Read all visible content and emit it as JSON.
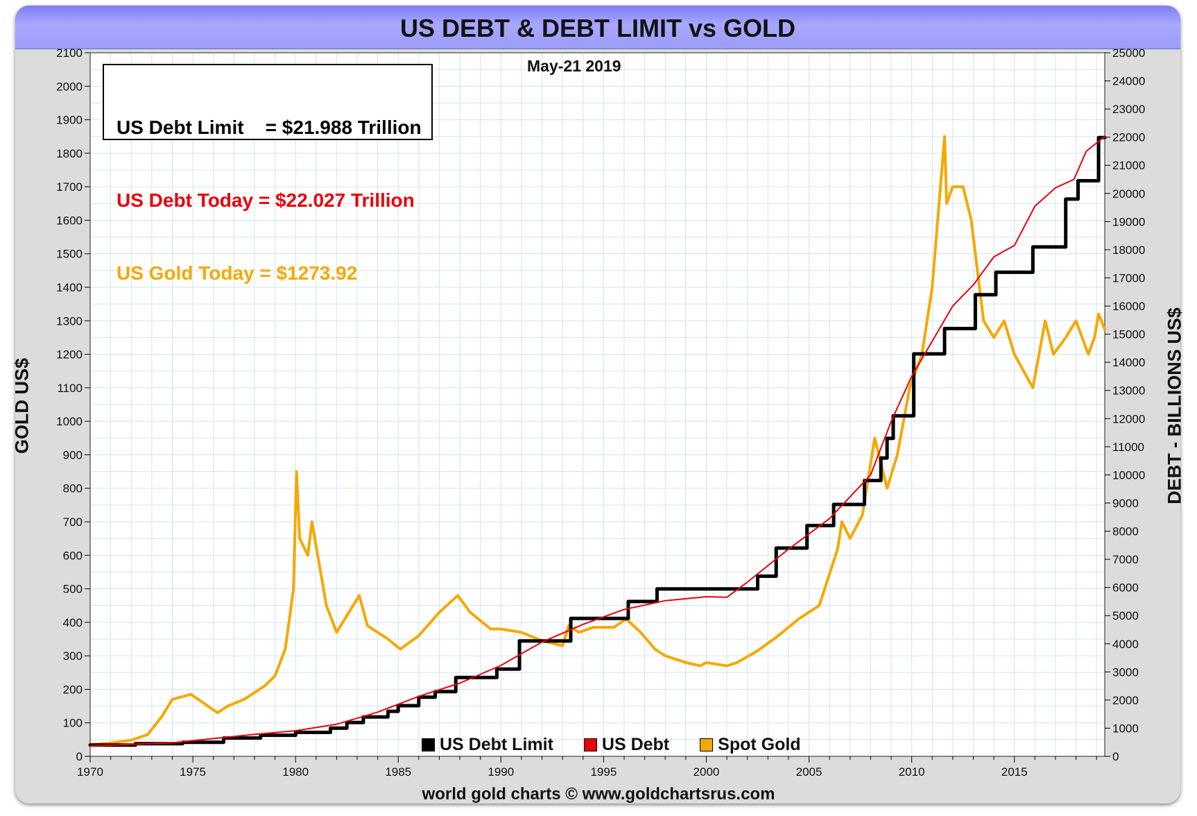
{
  "title": "US DEBT & DEBT LIMIT vs GOLD",
  "info_box": {
    "limit_line": "US Debt Limit    = $21.988 Trillion",
    "debt_line": "US Debt Today = $22.027 Trillion",
    "gold_line": "US Gold Today = $1273.92"
  },
  "date_label": "May-21  2019",
  "credit": "world gold charts © www.goldchartsrus.com",
  "colors": {
    "debt_limit": "#000000",
    "us_debt": "#e8000b",
    "spot_gold": "#f5a800",
    "title_bar": "#a3a3ff",
    "grid": "#d3e3f1"
  },
  "chart_data": {
    "type": "line",
    "title": "US DEBT & DEBT LIMIT vs GOLD",
    "xlabel": "",
    "ylabel_left": "GOLD US$",
    "ylabel_right": "DEBT - BILLIONS US$",
    "xlim": [
      1970,
      2019.4
    ],
    "ylim_left": [
      0,
      2100
    ],
    "ylim_right": [
      0,
      25000
    ],
    "x_ticks": [
      1970,
      1975,
      1980,
      1985,
      1990,
      1995,
      2000,
      2005,
      2010,
      2015
    ],
    "y_ticks_left": [
      0,
      100,
      200,
      300,
      400,
      500,
      600,
      700,
      800,
      900,
      1000,
      1100,
      1200,
      1300,
      1400,
      1500,
      1600,
      1700,
      1800,
      1900,
      2000,
      2100
    ],
    "y_ticks_right": [
      0,
      1000,
      2000,
      3000,
      4000,
      5000,
      6000,
      7000,
      8000,
      9000,
      10000,
      11000,
      12000,
      13000,
      14000,
      15000,
      16000,
      17000,
      18000,
      19000,
      20000,
      21000,
      22000,
      23000,
      24000,
      25000
    ],
    "grid": true,
    "legend_position": "bottom-center",
    "series": [
      {
        "name": "US Debt Limit",
        "axis": "right",
        "color": "#000000",
        "shape": "step",
        "x": [
          1970,
          1972.2,
          1974.5,
          1976.5,
          1978.3,
          1980,
          1981.7,
          1982.5,
          1983.3,
          1984.5,
          1985,
          1986,
          1986.8,
          1987.8,
          1989.8,
          1990.9,
          1993.4,
          1996.2,
          1997.6,
          2002.5,
          2003.4,
          2004.9,
          2006.2,
          2007.7,
          2008.5,
          2008.8,
          2009.1,
          2010.1,
          2011.6,
          2013.1,
          2014.1,
          2015.9,
          2017.5,
          2018.1,
          2019.1,
          2019.4
        ],
        "y": [
          400,
          450,
          500,
          650,
          750,
          850,
          1000,
          1200,
          1400,
          1600,
          1800,
          2100,
          2300,
          2800,
          3100,
          4100,
          4900,
          5500,
          5950,
          6400,
          7400,
          8200,
          8950,
          9800,
          10600,
          11300,
          12100,
          14300,
          15200,
          16400,
          17200,
          18100,
          19800,
          20450,
          21988,
          21988
        ]
      },
      {
        "name": "US Debt",
        "axis": "right",
        "color": "#e8000b",
        "shape": "line",
        "x": [
          1970,
          1972,
          1974,
          1976,
          1978,
          1980,
          1982,
          1984,
          1986,
          1988,
          1990,
          1992,
          1994,
          1996,
          1998,
          2000,
          2001,
          2002,
          2004,
          2006,
          2008,
          2009,
          2010,
          2011,
          2012,
          2013,
          2014,
          2015,
          2016,
          2017,
          2017.9,
          2018.5,
          2019.4
        ],
        "y": [
          370,
          430,
          480,
          630,
          780,
          910,
          1140,
          1570,
          2130,
          2600,
          3230,
          4060,
          4690,
          5220,
          5530,
          5670,
          5650,
          6190,
          7360,
          8450,
          10000,
          11900,
          13500,
          14750,
          16000,
          16750,
          17750,
          18150,
          19550,
          20200,
          20500,
          21500,
          22027
        ]
      },
      {
        "name": "Spot Gold",
        "axis": "left",
        "color": "#f5a800",
        "shape": "line",
        "x": [
          1970,
          1971,
          1972,
          1972.8,
          1973.5,
          1974,
          1974.9,
          1975.5,
          1976.2,
          1976.7,
          1977.5,
          1978.5,
          1979,
          1979.5,
          1979.9,
          1980.05,
          1980.2,
          1980.6,
          1980.8,
          1981.5,
          1982,
          1982.5,
          1983.1,
          1983.5,
          1984.5,
          1985.1,
          1986,
          1987,
          1987.9,
          1988.5,
          1989.5,
          1990,
          1991,
          1992,
          1993,
          1993.3,
          1993.8,
          1994.5,
          1995.5,
          1996.1,
          1996.8,
          1997.5,
          1998,
          1999,
          1999.7,
          2000,
          2001,
          2001.5,
          2002.5,
          2003.5,
          2004.5,
          2005.5,
          2006.4,
          2006.6,
          2007,
          2007.6,
          2008.2,
          2008.8,
          2009.3,
          2009.9,
          2010.5,
          2011,
          2011.6,
          2011.7,
          2012,
          2012.5,
          2012.9,
          2013.3,
          2013.5,
          2014,
          2014.5,
          2015,
          2015.9,
          2016.5,
          2016.9,
          2017.5,
          2018,
          2018.6,
          2018.9,
          2019.1,
          2019.4
        ],
        "y": [
          35,
          40,
          48,
          65,
          120,
          170,
          185,
          160,
          130,
          150,
          170,
          210,
          240,
          320,
          500,
          850,
          650,
          600,
          700,
          450,
          370,
          420,
          480,
          390,
          350,
          320,
          360,
          430,
          480,
          430,
          380,
          380,
          370,
          345,
          330,
          390,
          370,
          385,
          385,
          410,
          370,
          320,
          300,
          280,
          270,
          280,
          270,
          280,
          315,
          360,
          410,
          450,
          620,
          700,
          650,
          720,
          950,
          800,
          900,
          1100,
          1200,
          1400,
          1850,
          1650,
          1700,
          1700,
          1600,
          1400,
          1300,
          1250,
          1300,
          1200,
          1100,
          1300,
          1200,
          1250,
          1300,
          1200,
          1250,
          1320,
          1273.92
        ]
      }
    ]
  }
}
